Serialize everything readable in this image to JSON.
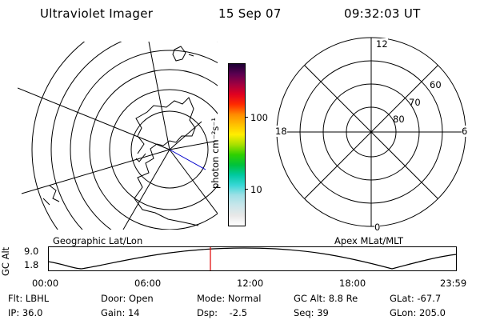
{
  "header": {
    "instrument": "Ultraviolet Imager",
    "date": "15 Sep 07",
    "time": "09:32:03 UT"
  },
  "colorbar": {
    "unit_label": "photon cm⁻²s⁻¹",
    "tick_high": "100",
    "tick_low": "10",
    "colors": [
      "#ffffff",
      "#e8e8e8",
      "#c9e6ea",
      "#9fe0e6",
      "#38d7d6",
      "#00c9a0",
      "#00c23c",
      "#2ed000",
      "#a6e000",
      "#ffee00",
      "#ffc000",
      "#ff8a00",
      "#ff2a00",
      "#e00020",
      "#a00040",
      "#5a0050",
      "#1b0033"
    ]
  },
  "left_map": {
    "projection_label": "Geographic Lat/Lon"
  },
  "right_map": {
    "projection_label": "Apex MLat/MLT",
    "mlt_labels": {
      "top": "12",
      "left": "18",
      "right": "6",
      "bottom": "0"
    },
    "mlat_labels": [
      "60",
      "70",
      "80"
    ]
  },
  "altitude_plot": {
    "ylabel": "GC Alt",
    "y_ticks": [
      "9.0",
      "1.8"
    ],
    "x_ticks": [
      "00:00",
      "06:00",
      "12:00",
      "18:00",
      "23:59"
    ],
    "current_time_marker": "09:32:03",
    "marker_color": "#e00000"
  },
  "info": {
    "flt": "Flt: LBHL",
    "ip": "IP: 36.0",
    "door": "Door: Open",
    "gain": "Gain: 14",
    "mode": "Mode: Normal",
    "dsp": "Dsp:    -2.5",
    "gc_alt": "GC Alt: 8.8 Re",
    "seq": "Seq: 39",
    "glat": "GLat: -67.7",
    "glon": "GLon: 205.0"
  }
}
